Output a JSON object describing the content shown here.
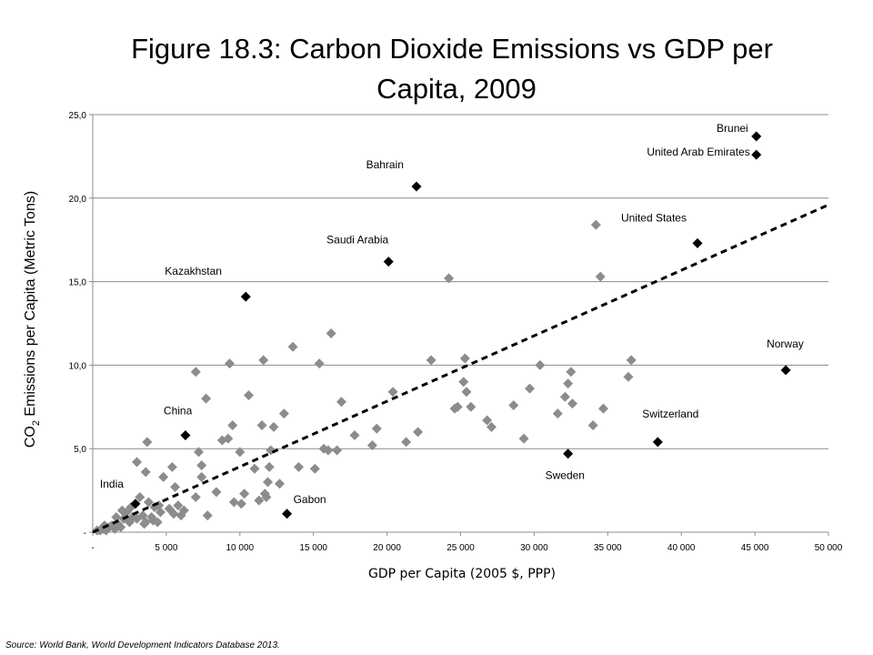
{
  "chart_data": {
    "type": "scatter",
    "title_line1": "Figure 18.3: Carbon Dioxide Emissions vs GDP per",
    "title_line2": "Capita, 2009",
    "ylabel_prefix": "CO",
    "ylabel_sub": "2",
    "ylabel_rest": " Emissions per Capita (Metric Tons)",
    "xlabel": "GDP per Capita (2005 $, PPP)",
    "source": "Source: World Bank, World Development Indicators Database 2013.",
    "xlim": [
      0,
      50000
    ],
    "ylim": [
      0,
      25
    ],
    "x_ticks": [
      {
        "value": 0,
        "label": "-"
      },
      {
        "value": 5000,
        "label": "5 000"
      },
      {
        "value": 10000,
        "label": "10 000"
      },
      {
        "value": 15000,
        "label": "15 000"
      },
      {
        "value": 20000,
        "label": "20 000"
      },
      {
        "value": 25000,
        "label": "25 000"
      },
      {
        "value": 30000,
        "label": "30 000"
      },
      {
        "value": 35000,
        "label": "35 000"
      },
      {
        "value": 40000,
        "label": "40 000"
      },
      {
        "value": 45000,
        "label": "45 000"
      },
      {
        "value": 50000,
        "label": "50 000"
      }
    ],
    "y_ticks": [
      {
        "value": 0,
        "label": "-"
      },
      {
        "value": 5,
        "label": "5,0"
      },
      {
        "value": 10,
        "label": "10,0"
      },
      {
        "value": 15,
        "label": "15,0"
      },
      {
        "value": 20,
        "label": "20,0"
      },
      {
        "value": 25,
        "label": "25,0"
      }
    ],
    "grid": "horizontal",
    "colors": {
      "highlight": "#000000",
      "other": "#8c8c8c",
      "grid": "#8c8c8c",
      "trend": "#000000"
    },
    "trendline": {
      "style": "dashed",
      "x": [
        0,
        50000
      ],
      "y": [
        0,
        19.6
      ]
    },
    "highlighted": [
      {
        "name": "Brunei",
        "x": 45100,
        "y": 23.7
      },
      {
        "name": "United Arab Emirates",
        "x": 45100,
        "y": 22.6
      },
      {
        "name": "Bahrain",
        "x": 22000,
        "y": 20.7
      },
      {
        "name": "United States",
        "x": 41100,
        "y": 17.3
      },
      {
        "name": "Saudi Arabia",
        "x": 20100,
        "y": 16.2
      },
      {
        "name": "Kazakhstan",
        "x": 10400,
        "y": 14.1
      },
      {
        "name": "Norway",
        "x": 47100,
        "y": 9.7
      },
      {
        "name": "China",
        "x": 6300,
        "y": 5.8
      },
      {
        "name": "Switzerland",
        "x": 38400,
        "y": 5.4
      },
      {
        "name": "Sweden",
        "x": 32300,
        "y": 4.7
      },
      {
        "name": "India",
        "x": 2900,
        "y": 1.7
      },
      {
        "name": "Gabon",
        "x": 13200,
        "y": 1.1
      }
    ],
    "others": [
      [
        300,
        0.1
      ],
      [
        500,
        0.1
      ],
      [
        700,
        0.2
      ],
      [
        900,
        0.1
      ],
      [
        1100,
        0.3
      ],
      [
        1300,
        0.4
      ],
      [
        1500,
        0.2
      ],
      [
        1700,
        0.5
      ],
      [
        1900,
        0.3
      ],
      [
        2100,
        0.8
      ],
      [
        2300,
        1.2
      ],
      [
        2500,
        0.6
      ],
      [
        2700,
        0.9
      ],
      [
        800,
        0.4
      ],
      [
        1600,
        0.9
      ],
      [
        2000,
        1.3
      ],
      [
        2600,
        1.5
      ],
      [
        3000,
        0.8
      ],
      [
        3200,
        2.1
      ],
      [
        3400,
        1.0
      ],
      [
        3600,
        0.6
      ],
      [
        3800,
        1.8
      ],
      [
        4000,
        0.9
      ],
      [
        4200,
        1.5
      ],
      [
        4400,
        0.6
      ],
      [
        4600,
        1.2
      ],
      [
        3500,
        0.5
      ],
      [
        4100,
        0.7
      ],
      [
        4500,
        1.6
      ],
      [
        5200,
        1.4
      ],
      [
        5500,
        1.1
      ],
      [
        5800,
        1.6
      ],
      [
        6200,
        1.3
      ],
      [
        6000,
        1.0
      ],
      [
        5600,
        2.7
      ],
      [
        4800,
        3.3
      ],
      [
        3000,
        4.2
      ],
      [
        3600,
        3.6
      ],
      [
        3700,
        5.4
      ],
      [
        5400,
        3.9
      ],
      [
        7000,
        2.1
      ],
      [
        7400,
        3.3
      ],
      [
        7200,
        4.8
      ],
      [
        7400,
        4.0
      ],
      [
        7700,
        8.0
      ],
      [
        7000,
        9.6
      ],
      [
        7800,
        1.0
      ],
      [
        8400,
        2.4
      ],
      [
        8800,
        5.5
      ],
      [
        9200,
        5.6
      ],
      [
        9500,
        6.4
      ],
      [
        9300,
        10.1
      ],
      [
        10300,
        2.3
      ],
      [
        9600,
        1.8
      ],
      [
        10100,
        1.7
      ],
      [
        10000,
        4.8
      ],
      [
        10600,
        8.2
      ],
      [
        11000,
        3.8
      ],
      [
        11500,
        6.4
      ],
      [
        11600,
        10.3
      ],
      [
        11800,
        2.1
      ],
      [
        11900,
        3.0
      ],
      [
        11300,
        1.9
      ],
      [
        12100,
        4.9
      ],
      [
        12300,
        6.3
      ],
      [
        12000,
        3.9
      ],
      [
        11700,
        2.3
      ],
      [
        12700,
        2.9
      ],
      [
        13000,
        7.1
      ],
      [
        13600,
        11.1
      ],
      [
        14000,
        3.9
      ],
      [
        15100,
        3.8
      ],
      [
        15400,
        10.1
      ],
      [
        15700,
        5.0
      ],
      [
        16200,
        11.9
      ],
      [
        16000,
        4.9
      ],
      [
        16600,
        4.9
      ],
      [
        16900,
        7.8
      ],
      [
        17800,
        5.8
      ],
      [
        19000,
        5.2
      ],
      [
        19300,
        6.2
      ],
      [
        20400,
        8.4
      ],
      [
        21300,
        5.4
      ],
      [
        22100,
        6.0
      ],
      [
        23000,
        10.3
      ],
      [
        24200,
        15.2
      ],
      [
        24600,
        7.4
      ],
      [
        24800,
        7.5
      ],
      [
        25300,
        10.4
      ],
      [
        25200,
        9.0
      ],
      [
        25400,
        8.4
      ],
      [
        25700,
        7.5
      ],
      [
        26800,
        6.7
      ],
      [
        27100,
        6.3
      ],
      [
        28600,
        7.6
      ],
      [
        29300,
        5.6
      ],
      [
        29700,
        8.6
      ],
      [
        30400,
        10.0
      ],
      [
        31600,
        7.1
      ],
      [
        32100,
        8.1
      ],
      [
        32300,
        8.9
      ],
      [
        32500,
        9.6
      ],
      [
        32600,
        7.7
      ],
      [
        34000,
        6.4
      ],
      [
        34200,
        18.4
      ],
      [
        34500,
        15.3
      ],
      [
        34700,
        7.4
      ],
      [
        36400,
        9.3
      ],
      [
        36600,
        10.3
      ]
    ]
  }
}
